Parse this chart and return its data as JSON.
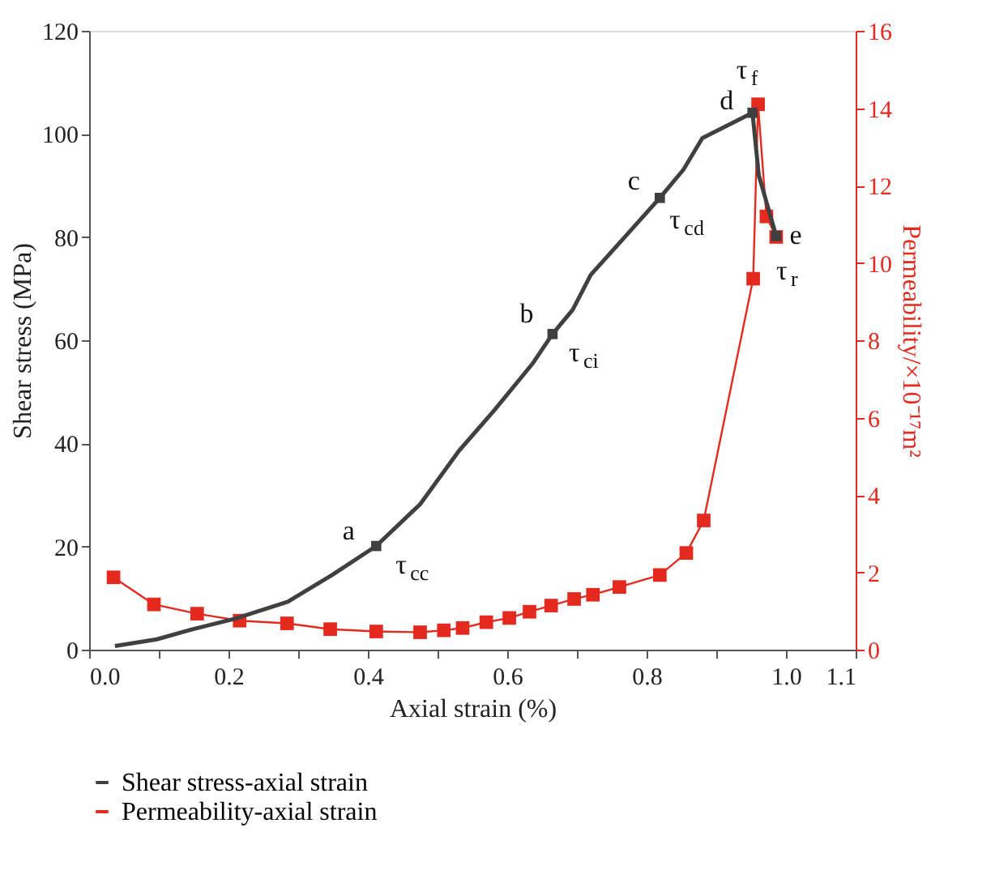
{
  "chart_data": {
    "type": "line",
    "xlabel": "Axial strain (%)",
    "ylabel": "Shear stress (MPa)",
    "y2label": "Permeability/×10⁻¹⁷m²",
    "xlim": [
      0.0,
      1.1
    ],
    "xticks": [
      {
        "value": 0,
        "label": "0.0"
      },
      {
        "value": 0.1,
        "label": null
      },
      0.2,
      {
        "value": 0.3,
        "label": null
      },
      0.4,
      {
        "value": 0.5,
        "label": null
      },
      0.6,
      {
        "value": 0.7,
        "label": null
      },
      0.8,
      {
        "value": 0.9,
        "label": null
      },
      {
        "value": 1,
        "label": "1.0"
      },
      1.1
    ],
    "ylim": [
      0,
      120
    ],
    "yticks": [
      0,
      20,
      40,
      60,
      80,
      100,
      120
    ],
    "y2lim": [
      0,
      16
    ],
    "y2ticks": [
      0,
      2,
      4,
      6,
      8,
      10,
      12,
      14,
      16
    ],
    "grid": false,
    "legend": "bottom",
    "series": [
      {
        "name": "Shear stress-axial strain",
        "color": "#404040",
        "type": "line",
        "marker": "none",
        "x": [
          0.037,
          0.097,
          0.147,
          0.209,
          0.285,
          0.349,
          0.412,
          0.475,
          0.531,
          0.582,
          0.636,
          0.665,
          0.694,
          0.72,
          0.764,
          0.819,
          0.853,
          0.88,
          0.952,
          0.961,
          0.986
        ],
        "values": [
          0.7,
          2.0,
          3.9,
          6.0,
          9.3,
          14.5,
          20.1,
          28.2,
          38.6,
          46.5,
          55.4,
          61.2,
          65.9,
          72.7,
          79.3,
          87.6,
          93.1,
          99.2,
          104.1,
          92.0,
          80.2
        ]
      },
      {
        "color": "#404040",
        "type": "scatter",
        "marker": "square",
        "x": [
          0.412,
          0.665,
          0.819,
          0.952,
          0.986
        ],
        "values": [
          20.1,
          61.2,
          87.6,
          104.1,
          80.2
        ]
      },
      {
        "name": "Permeability-axial strain",
        "color": "#e42a1f",
        "type": "line",
        "marker": "square",
        "axis": "y2",
        "x": [
          0.035,
          0.093,
          0.155,
          0.216,
          0.284,
          0.346,
          0.412,
          0.475,
          0.509,
          0.536,
          0.57,
          0.603,
          0.632,
          0.663,
          0.696,
          0.723,
          0.761,
          0.819,
          0.857,
          0.882,
          0.953,
          0.96,
          0.972,
          0.986
        ],
        "values": [
          1.87,
          1.17,
          0.93,
          0.75,
          0.68,
          0.53,
          0.47,
          0.45,
          0.5,
          0.56,
          0.71,
          0.82,
          0.98,
          1.14,
          1.31,
          1.42,
          1.62,
          1.93,
          2.5,
          3.34,
          9.59,
          14.1,
          11.2,
          10.67
        ]
      }
    ],
    "annotations": [
      {
        "text": "a",
        "x": 0.412,
        "y": 20.1
      },
      {
        "text": "τ$_{cc}$",
        "x": 0.412,
        "y": 20.1
      },
      {
        "text": "b",
        "x": 0.665,
        "y": 61.2
      },
      {
        "text": "τ$_{ci}$",
        "x": 0.665,
        "y": 61.2
      },
      {
        "text": "c",
        "x": 0.819,
        "y": 87.6
      },
      {
        "text": "τ$_{cd}$",
        "x": 0.819,
        "y": 87.6
      },
      {
        "text": "d",
        "x": 0.952,
        "y": 104.1
      },
      {
        "text": "τ$_{f}$",
        "x": 0.952,
        "y": 104.1
      },
      {
        "text": "e",
        "x": 0.986,
        "y": 80.2
      },
      {
        "text": "τ$_{r}$",
        "x": 0.986,
        "y": 80.2
      }
    ]
  }
}
